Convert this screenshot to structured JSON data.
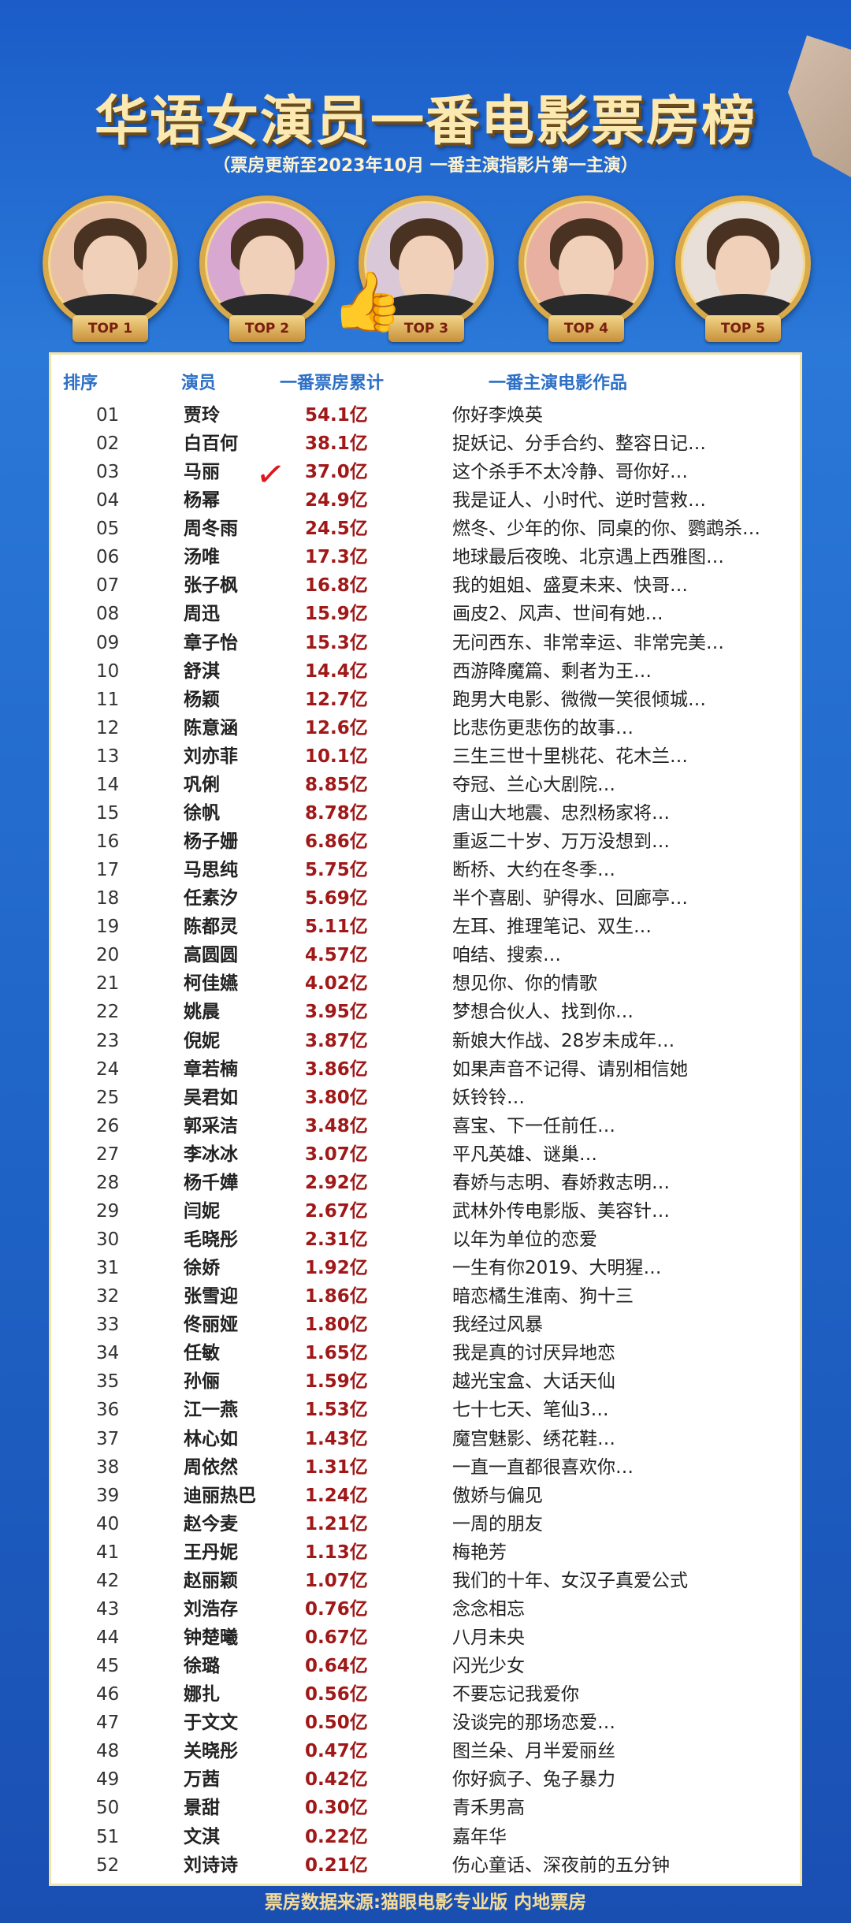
{
  "title": "华语女演员一番电影票房榜",
  "subtitle": "（票房更新至2023年10月  一番主演指影片第一主演）",
  "top5": [
    "TOP 1",
    "TOP 2",
    "TOP 3",
    "TOP 4",
    "TOP 5"
  ],
  "headers": {
    "rank": "排序",
    "actress": "演员",
    "box_office": "一番票房累计",
    "films": "一番主演电影作品"
  },
  "colors": {
    "background": "#1f63c6",
    "box_office_text": "#a01818",
    "header_text": "#2c6fc6",
    "title": "#fbe9b0"
  },
  "rows": [
    [
      "01",
      "贾玲",
      "54.1亿",
      "你好李焕英"
    ],
    [
      "02",
      "白百何",
      "38.1亿",
      "捉妖记、分手合约、整容日记…"
    ],
    [
      "03",
      "马丽",
      "37.0亿",
      "这个杀手不太冷静、哥你好…"
    ],
    [
      "04",
      "杨幂",
      "24.9亿",
      "我是证人、小时代、逆时营救…"
    ],
    [
      "05",
      "周冬雨",
      "24.5亿",
      "燃冬、少年的你、同桌的你、鹦鹉杀…"
    ],
    [
      "06",
      "汤唯",
      "17.3亿",
      "地球最后夜晚、北京遇上西雅图…"
    ],
    [
      "07",
      "张子枫",
      "16.8亿",
      "我的姐姐、盛夏未来、快哥…"
    ],
    [
      "08",
      "周迅",
      "15.9亿",
      "画皮2、风声、世间有她…"
    ],
    [
      "09",
      "章子怡",
      "15.3亿",
      "无问西东、非常幸运、非常完美…"
    ],
    [
      "10",
      "舒淇",
      "14.4亿",
      "西游降魔篇、剩者为王…"
    ],
    [
      "11",
      "杨颖",
      "12.7亿",
      "跑男大电影、微微一笑很倾城…"
    ],
    [
      "12",
      "陈意涵",
      "12.6亿",
      "比悲伤更悲伤的故事…"
    ],
    [
      "13",
      "刘亦菲",
      "10.1亿",
      "三生三世十里桃花、花木兰…"
    ],
    [
      "14",
      "巩俐",
      "8.85亿",
      "夺冠、兰心大剧院…"
    ],
    [
      "15",
      "徐帆",
      "8.78亿",
      "唐山大地震、忠烈杨家将…"
    ],
    [
      "16",
      "杨子姗",
      "6.86亿",
      "重返二十岁、万万没想到…"
    ],
    [
      "17",
      "马思纯",
      "5.75亿",
      "断桥、大约在冬季…"
    ],
    [
      "18",
      "任素汐",
      "5.69亿",
      "半个喜剧、驴得水、回廊亭…"
    ],
    [
      "19",
      "陈都灵",
      "5.11亿",
      "左耳、推理笔记、双生…"
    ],
    [
      "20",
      "高圆圆",
      "4.57亿",
      "咱结、搜索…"
    ],
    [
      "21",
      "柯佳嬿",
      "4.02亿",
      "想见你、你的情歌"
    ],
    [
      "22",
      "姚晨",
      "3.95亿",
      "梦想合伙人、找到你…"
    ],
    [
      "23",
      "倪妮",
      "3.87亿",
      "新娘大作战、28岁未成年…"
    ],
    [
      "24",
      "章若楠",
      "3.86亿",
      "如果声音不记得、请别相信她"
    ],
    [
      "25",
      "吴君如",
      "3.80亿",
      "妖铃铃…"
    ],
    [
      "26",
      "郭采洁",
      "3.48亿",
      "喜宝、下一任前任…"
    ],
    [
      "27",
      "李冰冰",
      "3.07亿",
      "平凡英雄、谜巢…"
    ],
    [
      "28",
      "杨千嬅",
      "2.92亿",
      "春娇与志明、春娇救志明…"
    ],
    [
      "29",
      "闫妮",
      "2.67亿",
      "武林外传电影版、美容针…"
    ],
    [
      "30",
      "毛晓彤",
      "2.31亿",
      "以年为单位的恋爱"
    ],
    [
      "31",
      "徐娇",
      "1.92亿",
      "一生有你2019、大明猩…"
    ],
    [
      "32",
      "张雪迎",
      "1.86亿",
      "暗恋橘生淮南、狗十三"
    ],
    [
      "33",
      "佟丽娅",
      "1.80亿",
      "我经过风暴"
    ],
    [
      "34",
      "任敏",
      "1.65亿",
      "我是真的讨厌异地恋"
    ],
    [
      "35",
      "孙俪",
      "1.59亿",
      "越光宝盒、大话天仙"
    ],
    [
      "36",
      "江一燕",
      "1.53亿",
      "七十七天、笔仙3…"
    ],
    [
      "37",
      "林心如",
      "1.43亿",
      "魔宫魅影、绣花鞋…"
    ],
    [
      "38",
      "周依然",
      "1.31亿",
      "一直一直都很喜欢你…"
    ],
    [
      "39",
      "迪丽热巴",
      "1.24亿",
      "傲娇与偏见"
    ],
    [
      "40",
      "赵今麦",
      "1.21亿",
      "一周的朋友"
    ],
    [
      "41",
      "王丹妮",
      "1.13亿",
      "梅艳芳"
    ],
    [
      "42",
      "赵丽颖",
      "1.07亿",
      "我们的十年、女汉子真爱公式"
    ],
    [
      "43",
      "刘浩存",
      "0.76亿",
      "念念相忘"
    ],
    [
      "44",
      "钟楚曦",
      "0.67亿",
      "八月未央"
    ],
    [
      "45",
      "徐璐",
      "0.64亿",
      "闪光少女"
    ],
    [
      "46",
      "娜扎",
      "0.56亿",
      "不要忘记我爱你"
    ],
    [
      "47",
      "于文文",
      "0.50亿",
      "没谈完的那场恋爱…"
    ],
    [
      "48",
      "关晓彤",
      "0.47亿",
      "图兰朵、月半爱丽丝"
    ],
    [
      "49",
      "万茜",
      "0.42亿",
      "你好疯子、兔子暴力"
    ],
    [
      "50",
      "景甜",
      "0.30亿",
      "青禾男高"
    ],
    [
      "51",
      "文淇",
      "0.22亿",
      "嘉年华"
    ],
    [
      "52",
      "刘诗诗",
      "0.21亿",
      "伤心童话、深夜前的五分钟"
    ]
  ],
  "check_icon": "check-mark-icon",
  "thumb_icon": "thumbs-up-icon",
  "footer": "票房数据来源:猫眼电影专业版  内地票房"
}
